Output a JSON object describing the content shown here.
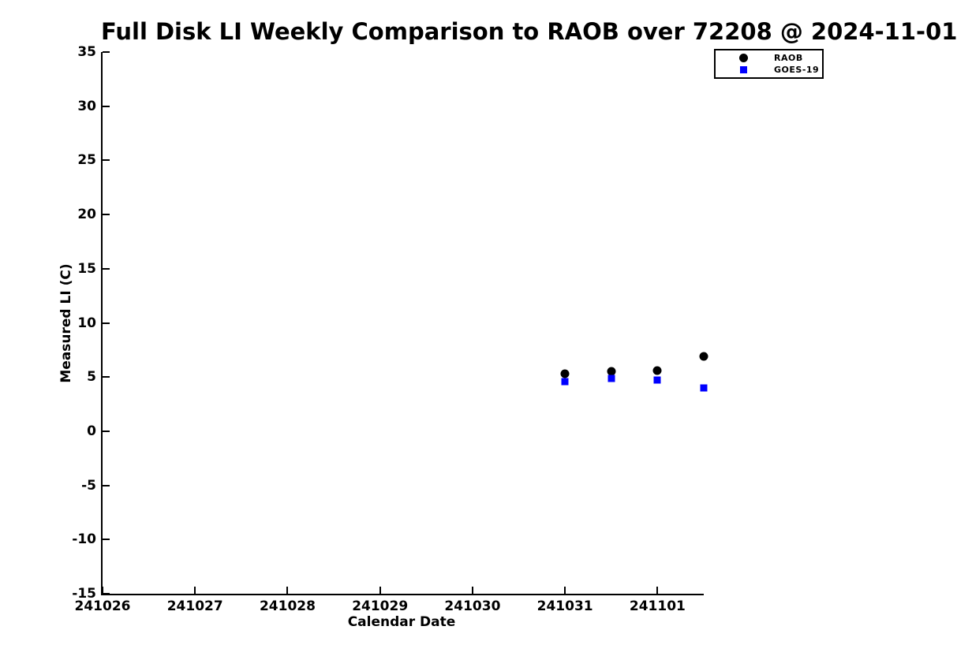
{
  "chart_data": {
    "type": "scatter",
    "title": "Full Disk LI Weekly Comparison to RAOB over 72208 @ 2024-11-01",
    "xlabel": "Calendar Date",
    "ylabel": "Measured LI (C)",
    "xlim": [
      0,
      6.5
    ],
    "ylim": [
      -15,
      35
    ],
    "x_tick_positions": [
      0,
      1,
      2,
      3,
      4,
      5,
      6
    ],
    "x_tick_labels": [
      "241026",
      "241027",
      "241028",
      "241029",
      "241030",
      "241031",
      "241101"
    ],
    "y_ticks": [
      35,
      30,
      25,
      20,
      15,
      10,
      5,
      0,
      -5,
      -10,
      -15
    ],
    "grid": false,
    "background_color": "#ffffff",
    "axis_color": "#000000",
    "legend_position": "top-right-outside",
    "series": [
      {
        "name": "RAOB",
        "marker": "circle",
        "color": "#000000",
        "x": [
          5.0,
          5.5,
          6.0,
          6.5
        ],
        "x_dates": [
          "241031.0",
          "241031.5",
          "241101.0",
          "241101.5"
        ],
        "y": [
          5.3,
          5.5,
          5.6,
          6.9
        ]
      },
      {
        "name": "GOES-19",
        "marker": "square",
        "color": "#0000ff",
        "x": [
          5.0,
          5.5,
          6.0,
          6.5
        ],
        "x_dates": [
          "241031.0",
          "241031.5",
          "241101.0",
          "241101.5"
        ],
        "y": [
          4.6,
          4.9,
          4.7,
          4.0
        ]
      }
    ]
  }
}
